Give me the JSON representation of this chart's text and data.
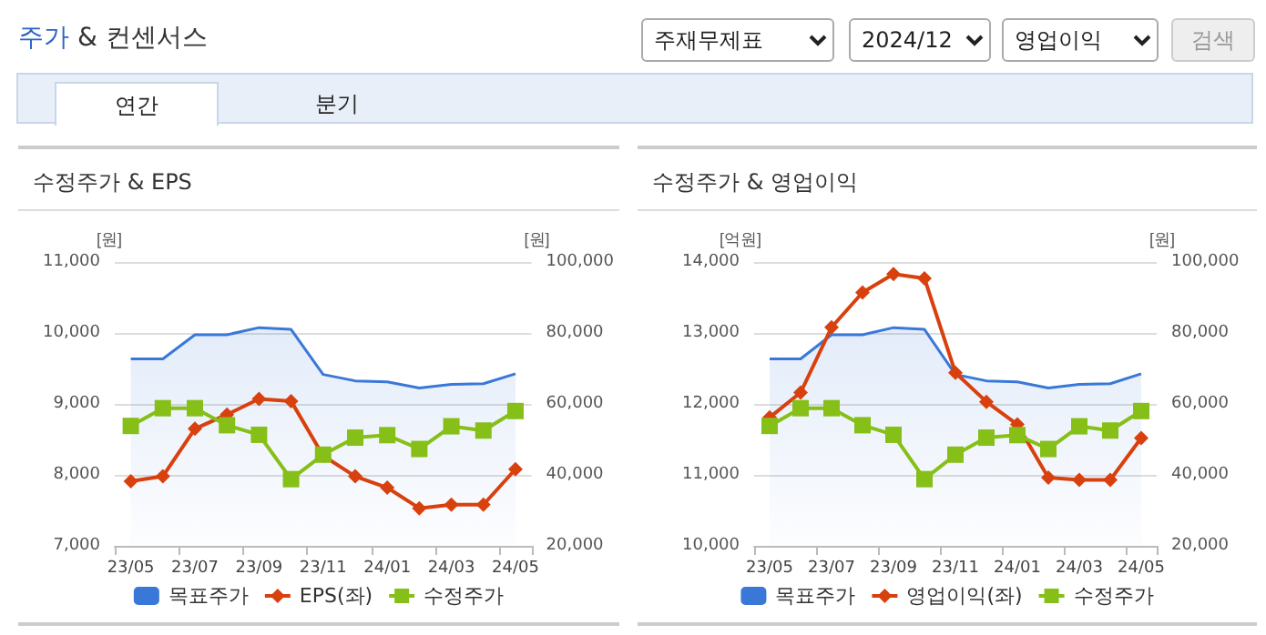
{
  "chart_data": [
    {
      "type": "other",
      "title": "주가 & 컨센서스",
      "annotations": [
        "주재무제표",
        "2024/12",
        "영업이익",
        "검색",
        "연간",
        "분기"
      ]
    },
    {
      "type": "line",
      "title": "수정주가 & EPS",
      "ylabel": "[원]",
      "y2label": "[원]",
      "categories": [
        "23/05",
        null,
        "23/07",
        null,
        "23/09",
        null,
        "23/11",
        null,
        "24/01",
        null,
        "24/03",
        null,
        "24/05"
      ],
      "series": [
        {
          "name": "목표주가",
          "type": "area",
          "axis": "y2",
          "marker": "none",
          "color": "#3a78d8",
          "values": [
            72700,
            72700,
            79500,
            79500,
            81500,
            81000,
            68300,
            66500,
            66200,
            64500,
            65500,
            65700,
            68500
          ]
        },
        {
          "name": "EPS(좌)",
          "type": "line",
          "marker": "diamond",
          "color": "#d8400e",
          "values": [
            7910,
            7980,
            8650,
            8850,
            9070,
            9040,
            8270,
            7980,
            7820,
            7530,
            7580,
            7580,
            8080
          ]
        },
        {
          "name": "수정주가",
          "type": "line",
          "axis": "y2",
          "marker": "square",
          "color": "#86bf17",
          "values": [
            53800,
            58800,
            58800,
            54000,
            51300,
            38800,
            45700,
            50500,
            51200,
            47300,
            53700,
            52500,
            58000
          ]
        }
      ],
      "ylim": [
        7000,
        11000
      ],
      "yticks": [
        {
          "value": 7000,
          "label": "7,000"
        },
        {
          "value": 8000,
          "label": "8,000"
        },
        {
          "value": 9000,
          "label": "9,000"
        },
        {
          "value": 10000,
          "label": "10,000"
        },
        {
          "value": 11000,
          "label": "11,000"
        }
      ],
      "y2lim": [
        20000,
        100000
      ],
      "y2ticks": [
        {
          "value": 20000,
          "label": "20,000"
        },
        {
          "value": 40000,
          "label": "40,000"
        },
        {
          "value": 60000,
          "label": "60,000"
        },
        {
          "value": 80000,
          "label": "80,000"
        },
        {
          "value": 100000,
          "label": "100,000"
        }
      ],
      "grid": "y",
      "legend": "bottom"
    },
    {
      "type": "line",
      "title": "수정주가 & 영업이익",
      "ylabel": "[억원]",
      "y2label": "[원]",
      "categories": [
        "23/05",
        null,
        "23/07",
        null,
        "23/09",
        null,
        "23/11",
        null,
        "24/01",
        null,
        "24/03",
        null,
        "24/05"
      ],
      "series": [
        {
          "name": "목표주가",
          "type": "area",
          "axis": "y2",
          "marker": "none",
          "color": "#3a78d8",
          "values": [
            72700,
            72700,
            79500,
            79500,
            81500,
            81000,
            68300,
            66500,
            66200,
            64500,
            65500,
            65700,
            68500
          ]
        },
        {
          "name": "영업이익(좌)",
          "type": "line",
          "marker": "diamond",
          "color": "#d8400e",
          "values": [
            11810,
            12160,
            13080,
            13570,
            13830,
            13770,
            12440,
            12030,
            11710,
            10960,
            10930,
            10930,
            11520
          ]
        },
        {
          "name": "수정주가",
          "type": "line",
          "axis": "y2",
          "marker": "square",
          "color": "#86bf17",
          "values": [
            53800,
            58800,
            58800,
            54000,
            51300,
            38800,
            45700,
            50500,
            51200,
            47300,
            53700,
            52500,
            58000
          ]
        }
      ],
      "ylim": [
        10000,
        14000
      ],
      "yticks": [
        {
          "value": 10000,
          "label": "10,000"
        },
        {
          "value": 11000,
          "label": "11,000"
        },
        {
          "value": 12000,
          "label": "12,000"
        },
        {
          "value": 13000,
          "label": "13,000"
        },
        {
          "value": 14000,
          "label": "14,000"
        }
      ],
      "y2lim": [
        20000,
        100000
      ],
      "y2ticks": [
        {
          "value": 20000,
          "label": "20,000"
        },
        {
          "value": 40000,
          "label": "40,000"
        },
        {
          "value": 60000,
          "label": "60,000"
        },
        {
          "value": 80000,
          "label": "80,000"
        },
        {
          "value": 100000,
          "label": "100,000"
        }
      ],
      "grid": "y",
      "legend": "bottom"
    }
  ]
}
